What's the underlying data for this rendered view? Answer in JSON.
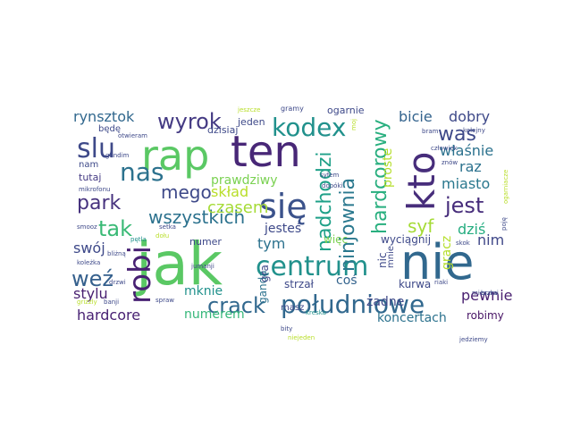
{
  "words": [
    {
      "text": "jak",
      "color": "#5ac864"
    },
    {
      "text": "nie",
      "color": "#31688e"
    },
    {
      "text": "ten",
      "color": "#482777"
    },
    {
      "text": "rap",
      "color": "#5ac864"
    },
    {
      "text": "kto",
      "color": "#472d7b"
    },
    {
      "text": "się",
      "color": "#3b528b"
    },
    {
      "text": "centrum",
      "color": "#21918c"
    },
    {
      "text": "południowe",
      "color": "#31688e"
    },
    {
      "text": "robi",
      "color": "#482173"
    },
    {
      "text": "kodex",
      "color": "#21918c"
    },
    {
      "text": "slu",
      "color": "#3e4989"
    },
    {
      "text": "nas",
      "color": "#2c728e"
    },
    {
      "text": "tak",
      "color": "#3aba76"
    },
    {
      "text": "wyrok",
      "color": "#443a83"
    },
    {
      "text": "weź",
      "color": "#35608d"
    },
    {
      "text": "crack",
      "color": "#31688e"
    },
    {
      "text": "ninjownia",
      "color": "#2a788e"
    },
    {
      "text": "nadchodzi",
      "color": "#1fa088"
    },
    {
      "text": "hardcorowy",
      "color": "#29af7f"
    },
    {
      "text": "jest",
      "color": "#472d7b"
    },
    {
      "text": "was",
      "color": "#3e4989"
    },
    {
      "text": "park",
      "color": "#46327e"
    },
    {
      "text": "wszystkich",
      "color": "#2c728e"
    },
    {
      "text": "mego",
      "color": "#3e4989"
    },
    {
      "text": "syf",
      "color": "#a5db36"
    },
    {
      "text": "czasem",
      "color": "#a5db36"
    },
    {
      "text": "skład",
      "color": "#b8de29"
    },
    {
      "text": "stylu",
      "color": "#481f70"
    },
    {
      "text": "hardcore",
      "color": "#482173"
    },
    {
      "text": "mknie",
      "color": "#21918c"
    },
    {
      "text": "numerem",
      "color": "#35b779"
    },
    {
      "text": "tym",
      "color": "#2c728e"
    },
    {
      "text": "swój",
      "color": "#3e4989"
    },
    {
      "text": "rynsztok",
      "color": "#31688e"
    },
    {
      "text": "bicie",
      "color": "#33638d"
    },
    {
      "text": "dobry",
      "color": "#3e4989"
    },
    {
      "text": "właśnie",
      "color": "#2c728e"
    },
    {
      "text": "raz",
      "color": "#2c728e"
    },
    {
      "text": "miasto",
      "color": "#2a788e"
    },
    {
      "text": "dziś",
      "color": "#26ad81"
    },
    {
      "text": "nim",
      "color": "#3f4788"
    },
    {
      "text": "pewnie",
      "color": "#481f70"
    },
    {
      "text": "robimy",
      "color": "#471365"
    },
    {
      "text": "koncertach",
      "color": "#2c728e"
    },
    {
      "text": "żadne",
      "color": "#3e4989"
    },
    {
      "text": "prawdziwy",
      "color": "#7ad151"
    },
    {
      "text": "jesteś",
      "color": "#3e4989"
    },
    {
      "text": "coś",
      "color": "#33638d"
    },
    {
      "text": "proste",
      "color": "#b5de2b"
    },
    {
      "text": "gracz",
      "color": "#b5de2b"
    },
    {
      "text": "wyciągnij",
      "color": "#3e4989"
    },
    {
      "text": "kurwa",
      "color": "#3e4989"
    },
    {
      "text": "strzał",
      "color": "#3e4989"
    },
    {
      "text": "ganda",
      "color": "#2c728e"
    },
    {
      "text": "gra",
      "color": "#3e4989"
    },
    {
      "text": "nic",
      "color": "#3e4989"
    },
    {
      "text": "więc",
      "color": "#7ad151"
    },
    {
      "text": "numer",
      "color": "#3e4989"
    },
    {
      "text": "jeden",
      "color": "#3e4989"
    },
    {
      "text": "ogarnie",
      "color": "#3e4989"
    },
    {
      "text": "dzisiaj",
      "color": "#3e4989"
    },
    {
      "text": "tutaj",
      "color": "#443a83"
    },
    {
      "text": "nam",
      "color": "#3e4989"
    },
    {
      "text": "będę",
      "color": "#3e4989"
    },
    {
      "text": "masz",
      "color": "#3e4989"
    },
    {
      "text": "mnie",
      "color": "#3e4989"
    },
    {
      "text": "gramy",
      "color": "#3e4989"
    },
    {
      "text": "jeszcze",
      "color": "#b8de29"
    },
    {
      "text": "moj",
      "color": "#b8de29"
    },
    {
      "text": "bram",
      "color": "#3e4989"
    },
    {
      "text": "znów",
      "color": "#3e4989"
    },
    {
      "text": "kolejny",
      "color": "#3e4989"
    },
    {
      "text": "człowiek",
      "color": "#3e4989"
    },
    {
      "text": "ogarniacze",
      "color": "#b8de29"
    },
    {
      "text": "gandim",
      "color": "#3e4989"
    },
    {
      "text": "otwieram",
      "color": "#3e4989"
    },
    {
      "text": "mikrofonu",
      "color": "#3e4989"
    },
    {
      "text": "pętla",
      "color": "#21918c"
    },
    {
      "text": "bliżną",
      "color": "#3e4989"
    },
    {
      "text": "syfem",
      "color": "#3e4989"
    },
    {
      "text": "dopóki",
      "color": "#3e4989"
    },
    {
      "text": "skok",
      "color": "#3e4989"
    },
    {
      "text": "mieszka",
      "color": "#3e4989"
    },
    {
      "text": "brzmi",
      "color": "#3e4989"
    },
    {
      "text": "poję",
      "color": "#3e4989"
    },
    {
      "text": "riaki",
      "color": "#3e4989"
    },
    {
      "text": "koleżka",
      "color": "#3e4989"
    },
    {
      "text": "setka",
      "color": "#3e4989"
    },
    {
      "text": "dołu",
      "color": "#b8de29"
    },
    {
      "text": "banji",
      "color": "#3e4989"
    },
    {
      "text": "spraw",
      "color": "#3e4989"
    },
    {
      "text": "jumanji",
      "color": "#3e4989"
    },
    {
      "text": "bity",
      "color": "#3e4989"
    },
    {
      "text": "kreska",
      "color": "#21918c"
    },
    {
      "text": "niejeden",
      "color": "#b8de29"
    },
    {
      "text": "jedziemy",
      "color": "#3e4989"
    },
    {
      "text": "drzwi",
      "color": "#3e4989"
    },
    {
      "text": "grizzly",
      "color": "#b8de29"
    },
    {
      "text": "smooz",
      "color": "#3e4989"
    }
  ]
}
